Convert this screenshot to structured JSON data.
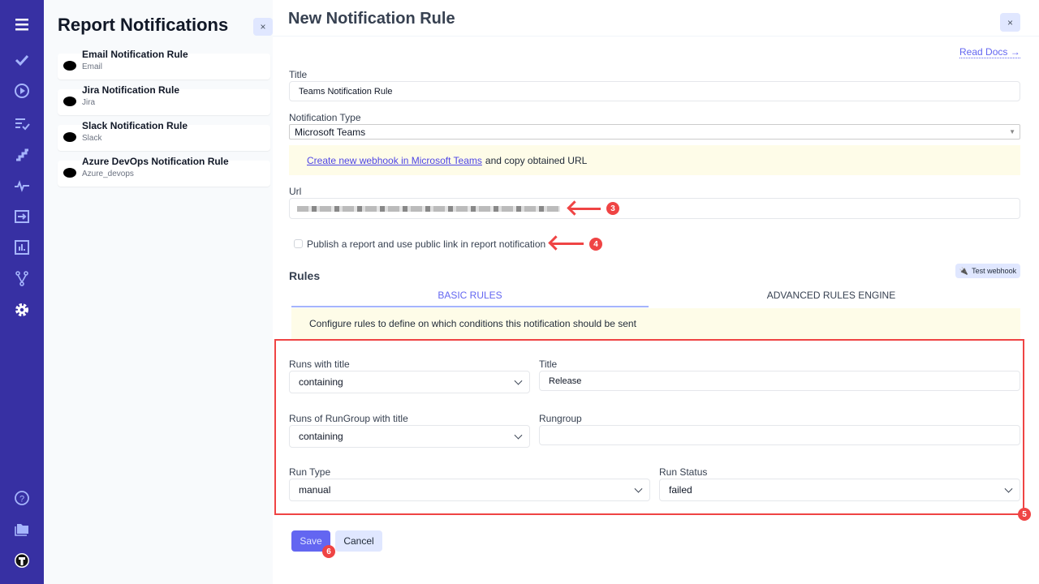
{
  "nav": {
    "icons": [
      "menu-icon",
      "check-icon",
      "play-icon",
      "list-check-icon",
      "steps-icon",
      "pulse-icon",
      "import-icon",
      "chart-icon",
      "branch-icon",
      "gear-icon",
      "help-icon",
      "folder-icon",
      "avatar-icon"
    ],
    "active": "gear-icon",
    "color": "#3730a3"
  },
  "left_panel": {
    "title": "Report Notifications",
    "close": "×",
    "items": [
      {
        "title": "Email Notification Rule",
        "subtitle": "Email"
      },
      {
        "title": "Jira Notification Rule",
        "subtitle": "Jira"
      },
      {
        "title": "Slack Notification Rule",
        "subtitle": "Slack"
      },
      {
        "title": "Azure DevOps Notification Rule",
        "subtitle": "Azure_devops"
      }
    ]
  },
  "form": {
    "heading": "New Notification Rule",
    "close": "×",
    "read_docs": "Read Docs →",
    "title_label": "Title",
    "title_value": "Teams Notification Rule",
    "type_label": "Notification Type",
    "type_value": "Microsoft Teams",
    "webhook_link": "Create new webhook in Microsoft Teams",
    "webhook_note": "and copy obtained URL",
    "url_label": "Url",
    "publish_label": "Publish a report and use public link in report notification",
    "publish_checked": false,
    "rules_heading": "Rules",
    "test_webhook": "Test webhook",
    "tabs": [
      {
        "label": "BASIC RULES",
        "active": true
      },
      {
        "label": "ADVANCED RULES ENGINE",
        "active": false
      }
    ],
    "rules_note": "Configure rules to define on which conditions this notification should be sent",
    "runs_title_label": "Runs with title",
    "runs_title_op": "containing",
    "title2_label": "Title",
    "title2_value": "Release",
    "rungroup_title_label": "Runs of RunGroup with title",
    "rungroup_op": "containing",
    "rungroup_label": "Rungroup",
    "rungroup_value": "",
    "run_type_label": "Run Type",
    "run_type_value": "manual",
    "run_status_label": "Run Status",
    "run_status_value": "failed",
    "save": "Save",
    "cancel": "Cancel"
  },
  "annotations": {
    "n3": "3",
    "n4": "4",
    "n5": "5",
    "n6": "6",
    "color": "#ef4444"
  }
}
